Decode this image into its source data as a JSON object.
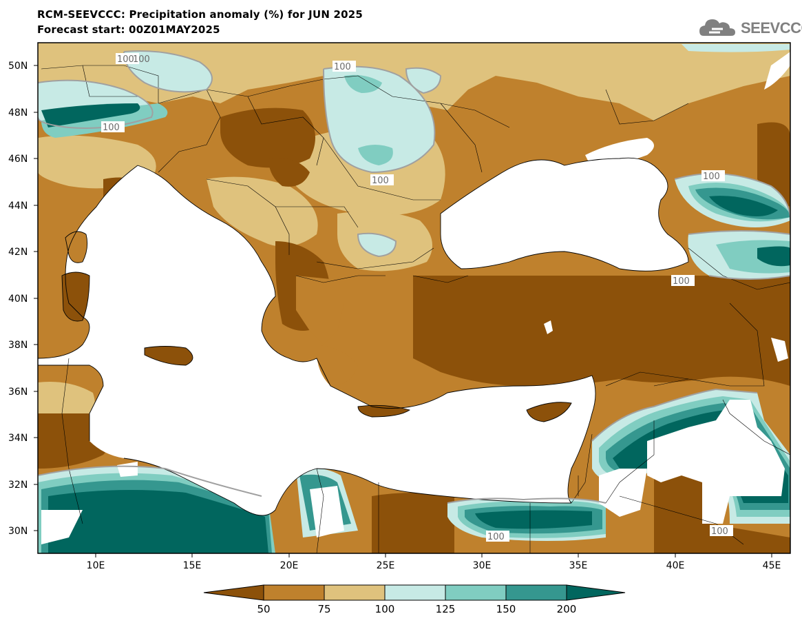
{
  "header": {
    "title": "RCM-SEEVCCC: Precipitation anomaly (%) for JUN 2025",
    "forecast_start": "Forecast start: 00Z01MAY2025"
  },
  "logo": {
    "text": "SEEVCCC",
    "icon": "cloud-icon"
  },
  "map": {
    "lat_labels": [
      "50N",
      "48N",
      "46N",
      "44N",
      "42N",
      "40N",
      "38N",
      "36N",
      "34N",
      "32N",
      "30N"
    ],
    "lon_labels": [
      "10E",
      "15E",
      "20E",
      "25E",
      "30E",
      "35E",
      "40E",
      "45E"
    ],
    "contour_labels": [
      "100",
      "100",
      "100",
      "100",
      "100",
      "100",
      "100",
      "100",
      "100"
    ]
  },
  "colorbar": {
    "labels": [
      "50",
      "75",
      "100",
      "125",
      "150",
      "200"
    ],
    "colors": {
      "below_50": "#8c510a",
      "50_75": "#bf812d",
      "75_100": "#dfc27d",
      "100_125": "#c7eae5",
      "125_150": "#80cdc1",
      "150_200": "#35978f",
      "above_200": "#01665e"
    }
  },
  "legend_colors": {
    "land_contour": "#a0a0a0",
    "sea": "#ffffff"
  }
}
